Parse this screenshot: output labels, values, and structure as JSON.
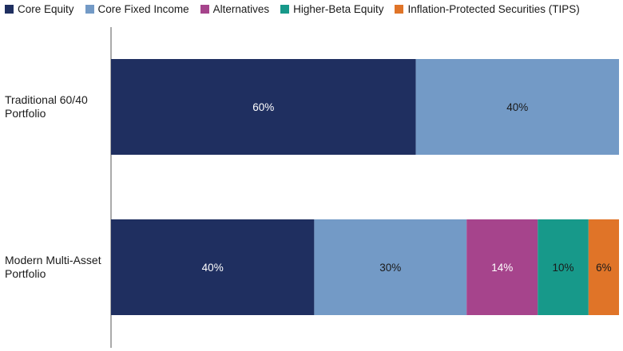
{
  "chart_data": {
    "type": "bar",
    "orientation": "horizontal",
    "stacked": true,
    "title": "",
    "xlabel": "",
    "ylabel": "",
    "xlim": [
      0,
      100
    ],
    "grid": false,
    "legend_position": "top",
    "categories": [
      "Traditional 60/40 Portfolio",
      "Modern Multi-Asset Portfolio"
    ],
    "series": [
      {
        "name": "Core Equity",
        "color": "#1f2f60",
        "label_color": "#ffffff",
        "values": [
          60,
          40
        ],
        "labels": [
          "60%",
          "40%"
        ]
      },
      {
        "name": "Core Fixed Income",
        "color": "#739ac6",
        "label_color": "#1a1a1a",
        "values": [
          40,
          30
        ],
        "labels": [
          "40%",
          "30%"
        ]
      },
      {
        "name": "Alternatives",
        "color": "#a6448c",
        "label_color": "#ffffff",
        "values": [
          0,
          14
        ],
        "labels": [
          "",
          "14%"
        ]
      },
      {
        "name": "Higher-Beta Equity",
        "color": "#17998a",
        "label_color": "#1a1a1a",
        "values": [
          0,
          10
        ],
        "labels": [
          "",
          "10%"
        ]
      },
      {
        "name": "Inflation-Protected Securities (TIPS)",
        "color": "#e07428",
        "label_color": "#1a1a1a",
        "values": [
          0,
          6
        ],
        "labels": [
          "",
          "6%"
        ]
      }
    ]
  }
}
